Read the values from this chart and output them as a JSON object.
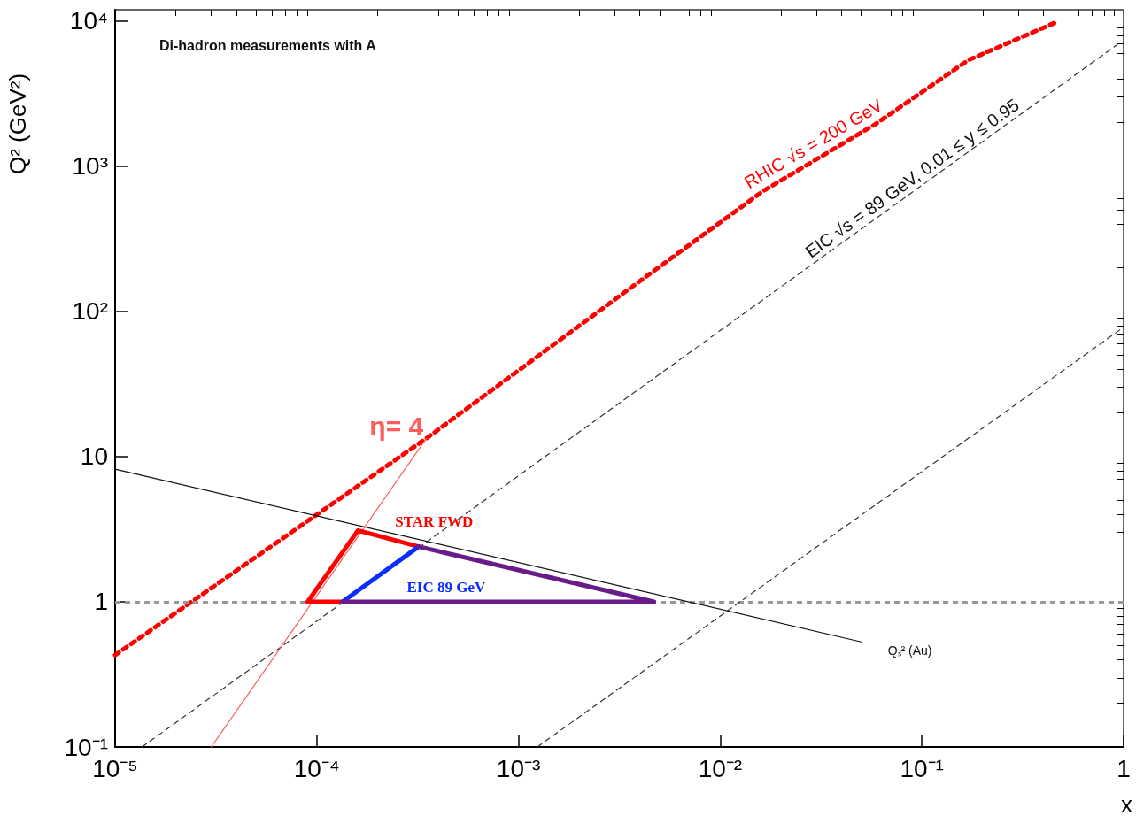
{
  "chart_data": {
    "type": "line",
    "title": "Di-hadron measurements with A",
    "xlabel": "x",
    "ylabel": "Q² (GeV²)",
    "log": "xy",
    "marker": "none",
    "xlim": [
      1e-05,
      1
    ],
    "ylim": [
      0.1,
      12000
    ],
    "xticks": [
      {
        "value": 1e-05,
        "label": "10⁻⁵"
      },
      {
        "value": 0.0001,
        "label": "10⁻⁴"
      },
      {
        "value": 0.001,
        "label": "10⁻³"
      },
      {
        "value": 0.01,
        "label": "10⁻²"
      },
      {
        "value": 0.1,
        "label": "10⁻¹"
      },
      1
    ],
    "yticks": [
      {
        "value": 0.1,
        "label": "10⁻¹"
      },
      1,
      10,
      {
        "value": 100,
        "label": "10²"
      },
      {
        "value": 1000,
        "label": "10³"
      },
      {
        "value": 10000,
        "label": "10⁴"
      }
    ],
    "series": [
      {
        "name": "RHIC √s = 200 GeV",
        "color": "#ff0000",
        "line_style": "dotted",
        "x": [
          1e-05,
          0.00035,
          0.00356,
          0.0163,
          0.059,
          0.17,
          0.46
        ],
        "values": [
          0.43,
          13.4,
          144,
          675,
          1960,
          5400,
          9800
        ]
      },
      {
        "name": "EIC √s = 89 GeV, 0.01 ≤ y ≤ 0.95",
        "color": "#333333",
        "line_style": "dashed",
        "x": [
          1.36e-05,
          0.93
        ],
        "values": [
          0.1,
          6900
        ]
      },
      {
        "color": "#333333",
        "line_style": "dashed",
        "x": [
          0.00124,
          1
        ],
        "values": [
          0.1,
          78
        ]
      },
      {
        "name": "Qₛ² (Au)",
        "color": "#111111",
        "line_style": "solid",
        "x": [
          1e-05,
          0.05
        ],
        "values": [
          8.2,
          0.53
        ]
      },
      {
        "name": "η= 4",
        "color": "#ff5c5c",
        "line_style": "solid",
        "x": [
          3e-05,
          0.00035
        ],
        "values": [
          0.1,
          13.4
        ]
      },
      {
        "name": "STAR FWD",
        "color": "#ff0000",
        "line_style": "solid",
        "x": [
          0.000134,
          9e-05,
          0.00016,
          0.00032
        ],
        "values": [
          1,
          1,
          3.1,
          2.4
        ]
      },
      {
        "name": "EIC 89 GeV",
        "color": "#0a2cff",
        "line_style": "solid",
        "x": [
          0.000134,
          0.00032
        ],
        "values": [
          1,
          2.4
        ]
      },
      {
        "color": "#6a1b8a",
        "line_style": "solid",
        "x": [
          0.00032,
          0.0047,
          0.000134
        ],
        "values": [
          2.4,
          1,
          1
        ]
      }
    ],
    "ref_lines": [
      {
        "axis": "y",
        "value": 1,
        "color": "#999999",
        "line_style": "dashed"
      }
    ]
  }
}
